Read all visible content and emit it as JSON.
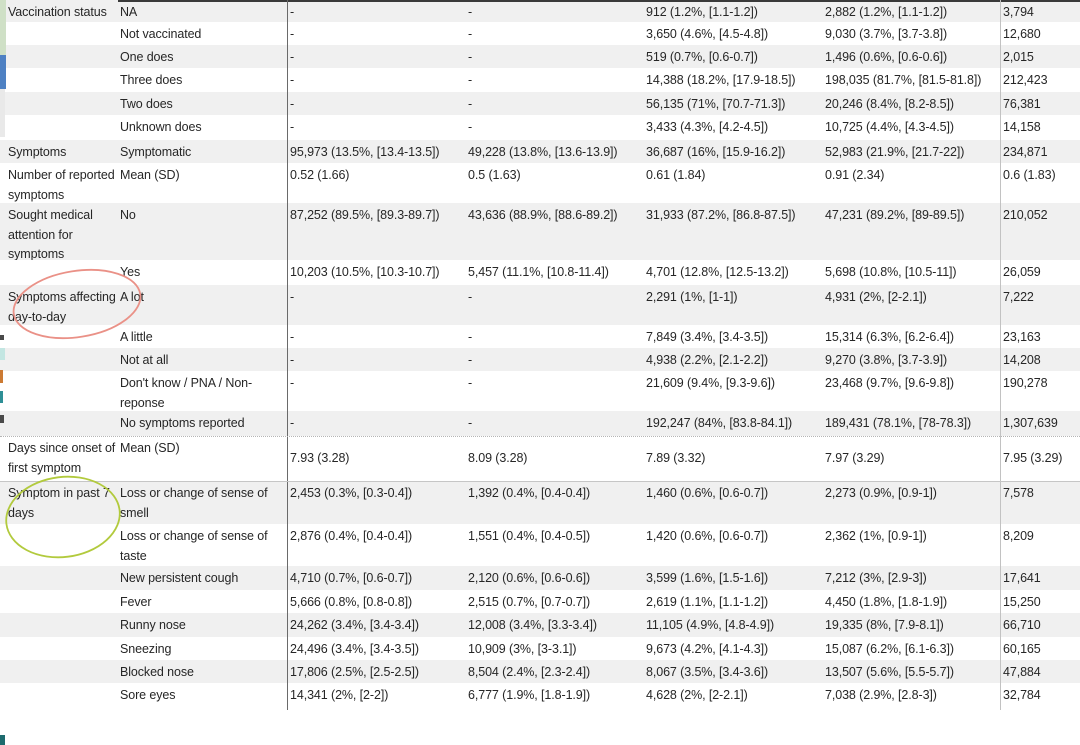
{
  "table": {
    "rows": [
      {
        "group": "Vaccination status",
        "label": "NA",
        "values": [
          "-",
          "-",
          "912 (1.2%, [1.1-1.2])",
          "2,882 (1.2%, [1.1-1.2])",
          "3,794"
        ]
      },
      {
        "group": "",
        "label": "Not vaccinated",
        "values": [
          "-",
          "-",
          "3,650 (4.6%, [4.5-4.8])",
          "9,030 (3.7%, [3.7-3.8])",
          "12,680"
        ]
      },
      {
        "group": "",
        "label": "One does",
        "values": [
          "-",
          "-",
          "519 (0.7%, [0.6-0.7])",
          "1,496 (0.6%, [0.6-0.6])",
          "2,015"
        ]
      },
      {
        "group": "",
        "label": "Three does",
        "values": [
          "-",
          "-",
          "14,388 (18.2%, [17.9-18.5])",
          "198,035 (81.7%, [81.5-81.8])",
          "212,423"
        ]
      },
      {
        "group": "",
        "label": "Two does",
        "values": [
          "-",
          "-",
          "56,135 (71%, [70.7-71.3])",
          "20,246 (8.4%, [8.2-8.5])",
          "76,381"
        ]
      },
      {
        "group": "",
        "label": "Unknown does",
        "values": [
          "-",
          "-",
          "3,433 (4.3%, [4.2-4.5])",
          "10,725 (4.4%, [4.3-4.5])",
          "14,158"
        ]
      },
      {
        "group": "Symptoms",
        "label": "Symptomatic",
        "values": [
          "95,973 (13.5%, [13.4-13.5])",
          "49,228 (13.8%, [13.6-13.9])",
          "36,687 (16%, [15.9-16.2])",
          "52,983 (21.9%, [21.7-22])",
          "234,871"
        ]
      },
      {
        "group": "Number of reported\nsymptoms",
        "label": "Mean (SD)",
        "values": [
          "0.52 (1.66)",
          "0.5 (1.63)",
          "0.61 (1.84)",
          "0.91 (2.34)",
          "0.6 (1.83)"
        ]
      },
      {
        "group": "Sought medical\nattention for\nsymptoms",
        "label": "No",
        "values": [
          "87,252 (89.5%, [89.3-89.7])",
          "43,636 (88.9%, [88.6-89.2])",
          "31,933 (87.2%, [86.8-87.5])",
          "47,231 (89.2%, [89-89.5])",
          "210,052"
        ]
      },
      {
        "group": "",
        "label": "Yes",
        "values": [
          "10,203 (10.5%, [10.3-10.7])",
          "5,457 (11.1%, [10.8-11.4])",
          "4,701 (12.8%, [12.5-13.2])",
          "5,698 (10.8%, [10.5-11])",
          "26,059"
        ]
      },
      {
        "group": "Symptoms affecting\nday-to-day activities",
        "label": "A lot",
        "values": [
          "-",
          "-",
          "2,291 (1%, [1-1])",
          "4,931 (2%, [2-2.1])",
          "7,222"
        ]
      },
      {
        "group": "",
        "label": "A little",
        "values": [
          "-",
          "-",
          "7,849 (3.4%, [3.4-3.5])",
          "15,314 (6.3%, [6.2-6.4])",
          "23,163"
        ]
      },
      {
        "group": "",
        "label": "Not at all",
        "values": [
          "-",
          "-",
          "4,938 (2.2%, [2.1-2.2])",
          "9,270 (3.8%, [3.7-3.9])",
          "14,208"
        ]
      },
      {
        "group": "",
        "label": "Don't know / PNA / Non-\nreponse",
        "values": [
          "-",
          "-",
          "21,609 (9.4%, [9.3-9.6])",
          "23,468 (9.7%, [9.6-9.8])",
          "190,278"
        ]
      },
      {
        "group": "",
        "label": "No symptoms reported",
        "values": [
          "-",
          "-",
          "192,247 (84%, [83.8-84.1])",
          "189,431 (78.1%, [78-78.3])",
          "1,307,639"
        ]
      },
      {
        "group": "Days since onset of\nfirst symptom",
        "label": "Mean (SD)",
        "values": [
          "7.93 (3.28)",
          "8.09 (3.28)",
          "7.89 (3.32)",
          "7.97 (3.29)",
          "7.95 (3.29)"
        ]
      },
      {
        "group": "Symptom in past 7\ndays",
        "label": "Loss or change of sense of\nsmell",
        "values": [
          "2,453 (0.3%, [0.3-0.4])",
          "1,392 (0.4%, [0.4-0.4])",
          "1,460 (0.6%, [0.6-0.7])",
          "2,273 (0.9%, [0.9-1])",
          "7,578"
        ]
      },
      {
        "group": "",
        "label": "Loss or change of sense of\ntaste",
        "values": [
          "2,876 (0.4%, [0.4-0.4])",
          "1,551 (0.4%, [0.4-0.5])",
          "1,420 (0.6%, [0.6-0.7])",
          "2,362 (1%, [0.9-1])",
          "8,209"
        ]
      },
      {
        "group": "",
        "label": "New persistent cough",
        "values": [
          "4,710 (0.7%, [0.6-0.7])",
          "2,120 (0.6%, [0.6-0.6])",
          "3,599 (1.6%, [1.5-1.6])",
          "7,212 (3%, [2.9-3])",
          "17,641"
        ]
      },
      {
        "group": "",
        "label": "Fever",
        "values": [
          "5,666 (0.8%, [0.8-0.8])",
          "2,515 (0.7%, [0.7-0.7])",
          "2,619 (1.1%, [1.1-1.2])",
          "4,450 (1.8%, [1.8-1.9])",
          "15,250"
        ]
      },
      {
        "group": "",
        "label": "Runny nose",
        "values": [
          "24,262 (3.4%, [3.4-3.4])",
          "12,008 (3.4%, [3.3-3.4])",
          "11,105 (4.9%, [4.8-4.9])",
          "19,335 (8%, [7.9-8.1])",
          "66,710"
        ]
      },
      {
        "group": "",
        "label": "Sneezing",
        "values": [
          "24,496 (3.4%, [3.4-3.5])",
          "10,909 (3%, [3-3.1])",
          "9,673 (4.2%, [4.1-4.3])",
          "15,087 (6.2%, [6.1-6.3])",
          "60,165"
        ]
      },
      {
        "group": "",
        "label": "Blocked nose",
        "values": [
          "17,806 (2.5%, [2.5-2.5])",
          "8,504 (2.4%, [2.3-2.4])",
          "8,067 (3.5%, [3.4-3.6])",
          "13,507 (5.6%, [5.5-5.7])",
          "47,884"
        ]
      },
      {
        "group": "",
        "label": "Sore eyes",
        "values": [
          "14,341 (2%, [2-2])",
          "6,777 (1.9%, [1.8-1.9])",
          "4,628 (2%, [2-2.1])",
          "7,038 (2.9%, [2.8-3])",
          "32,784"
        ]
      }
    ],
    "row_shade_color": "#f0f0f0"
  },
  "annotations": {
    "red_ellipse": {
      "target": "Symptoms affecting day-to-day activities",
      "color": "#ea9187"
    },
    "green_ellipse": {
      "target": "Symptom in past 7 days",
      "color": "#b2ca3d"
    }
  },
  "edge_artifacts": [
    {
      "name": "green-strip",
      "color": "#cfe0c6"
    },
    {
      "name": "blue-strip",
      "color": "#4e81c3"
    },
    {
      "name": "gray-strip",
      "color": "#e9e9e9"
    },
    {
      "name": "dark-tick",
      "color": "#4a4a4a"
    },
    {
      "name": "cyan-fragment",
      "color": "#c3e6e2"
    },
    {
      "name": "orange-fragment",
      "color": "#cc7a33"
    },
    {
      "name": "teal-fragment",
      "color": "#2e8f96"
    },
    {
      "name": "dark-tick-2",
      "color": "#4a4a4a"
    },
    {
      "name": "teal-corner",
      "color": "#1d6b6e"
    }
  ]
}
